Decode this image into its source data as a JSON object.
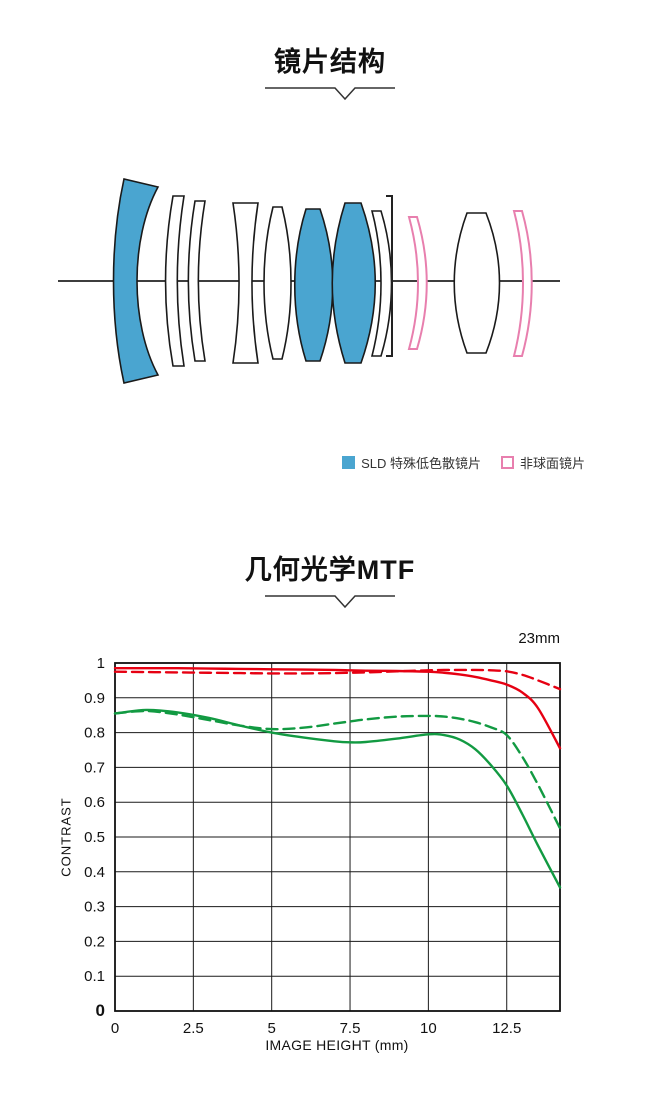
{
  "colors": {
    "sld_blue": "#4aa5d0",
    "aspherical_pink": "#e87fae",
    "outline": "#1a1a1a",
    "mtf_red": "#e60012",
    "mtf_green": "#129a42"
  },
  "lens_section": {
    "title": "镜片结构",
    "legend": {
      "sld_label": "SLD 特殊低色散镜片",
      "aspherical_label": "非球面镜片"
    }
  },
  "mtf_section": {
    "title": "几何光学MTF",
    "focal_length_label": "23mm"
  },
  "chart_data": {
    "type": "line",
    "title": "几何光学MTF",
    "annotation": "23mm",
    "xlabel": "IMAGE HEIGHT (mm)",
    "ylabel": "CONTRAST",
    "xlim": [
      0,
      14.2
    ],
    "ylim": [
      0,
      1
    ],
    "xticks": [
      0,
      2.5,
      5,
      7.5,
      10,
      12.5
    ],
    "yticks": [
      0,
      0.1,
      0.2,
      0.3,
      0.4,
      0.5,
      0.6,
      0.7,
      0.8,
      0.9,
      1
    ],
    "grid": true,
    "legend_position": "none",
    "x": [
      0,
      1,
      2,
      3,
      4,
      5,
      6,
      7,
      7.5,
      8,
      9,
      10,
      10.5,
      11,
      11.5,
      12,
      12.5,
      13,
      13.5,
      14.2
    ],
    "series": [
      {
        "name": "red-dashed",
        "color": "#e60012",
        "style": "dashed",
        "values": [
          0.975,
          0.974,
          0.973,
          0.972,
          0.971,
          0.97,
          0.97,
          0.971,
          0.972,
          0.973,
          0.976,
          0.979,
          0.98,
          0.98,
          0.98,
          0.979,
          0.976,
          0.966,
          0.95,
          0.925
        ]
      },
      {
        "name": "red-solid",
        "color": "#e60012",
        "style": "solid",
        "values": [
          0.985,
          0.985,
          0.985,
          0.984,
          0.983,
          0.982,
          0.981,
          0.98,
          0.979,
          0.978,
          0.977,
          0.975,
          0.972,
          0.967,
          0.96,
          0.95,
          0.938,
          0.915,
          0.87,
          0.755
        ]
      },
      {
        "name": "green-dashed",
        "color": "#129a42",
        "style": "dashed",
        "values": [
          0.855,
          0.862,
          0.852,
          0.836,
          0.82,
          0.81,
          0.814,
          0.826,
          0.832,
          0.838,
          0.846,
          0.848,
          0.846,
          0.84,
          0.83,
          0.815,
          0.793,
          0.73,
          0.65,
          0.525
        ]
      },
      {
        "name": "green-solid",
        "color": "#129a42",
        "style": "solid",
        "values": [
          0.855,
          0.865,
          0.858,
          0.842,
          0.82,
          0.8,
          0.786,
          0.775,
          0.772,
          0.773,
          0.783,
          0.795,
          0.793,
          0.78,
          0.752,
          0.706,
          0.648,
          0.565,
          0.475,
          0.355
        ]
      }
    ]
  }
}
